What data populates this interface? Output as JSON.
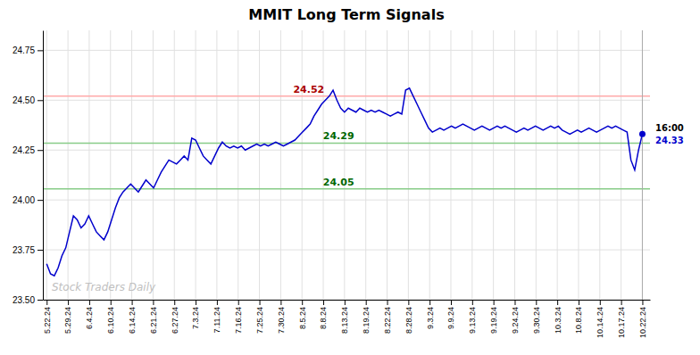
{
  "chart_data": {
    "type": "line",
    "title": "MMIT Long Term Signals",
    "color": "#0000cc",
    "grid": true,
    "values": [
      23.68,
      23.63,
      23.62,
      23.66,
      23.72,
      23.76,
      23.84,
      23.92,
      23.9,
      23.86,
      23.88,
      23.92,
      23.88,
      23.84,
      23.82,
      23.8,
      23.84,
      23.9,
      23.96,
      24.01,
      24.04,
      24.06,
      24.08,
      24.06,
      24.04,
      24.07,
      24.1,
      24.08,
      24.06,
      24.1,
      24.14,
      24.17,
      24.2,
      24.19,
      24.18,
      24.2,
      24.22,
      24.2,
      24.31,
      24.3,
      24.26,
      24.22,
      24.2,
      24.18,
      24.22,
      24.26,
      24.29,
      24.27,
      24.26,
      24.27,
      24.26,
      24.27,
      24.25,
      24.26,
      24.27,
      24.28,
      24.27,
      24.28,
      24.27,
      24.28,
      24.29,
      24.28,
      24.27,
      24.28,
      24.29,
      24.3,
      24.32,
      24.34,
      24.36,
      24.38,
      24.42,
      24.45,
      24.48,
      24.5,
      24.52,
      24.55,
      24.5,
      24.46,
      24.44,
      24.46,
      24.45,
      24.44,
      24.46,
      24.45,
      24.44,
      24.45,
      24.44,
      24.45,
      24.44,
      24.43,
      24.42,
      24.43,
      24.44,
      24.43,
      24.55,
      24.56,
      24.52,
      24.48,
      24.44,
      24.4,
      24.36,
      24.34,
      24.35,
      24.36,
      24.35,
      24.36,
      24.37,
      24.36,
      24.37,
      24.38,
      24.37,
      24.36,
      24.35,
      24.36,
      24.37,
      24.36,
      24.35,
      24.36,
      24.37,
      24.36,
      24.37,
      24.36,
      24.35,
      24.34,
      24.35,
      24.36,
      24.35,
      24.36,
      24.37,
      24.36,
      24.35,
      24.36,
      24.37,
      24.36,
      24.37,
      24.35,
      24.34,
      24.33,
      24.34,
      24.35,
      24.34,
      24.35,
      24.36,
      24.35,
      24.34,
      24.35,
      24.36,
      24.37,
      24.36,
      24.37,
      24.36,
      24.35,
      24.34,
      24.2,
      24.15,
      24.25,
      24.33
    ],
    "xlim": [
      -1,
      158
    ],
    "xticks": [
      {
        "value": 0,
        "label": "5.22.24"
      },
      {
        "value": 5.571428571428571,
        "label": "5.29.24"
      },
      {
        "value": 11.142857142857142,
        "label": "6.4.24"
      },
      {
        "value": 16.714285714285715,
        "label": "6.10.24"
      },
      {
        "value": 22.285714285714285,
        "label": "6.14.24"
      },
      {
        "value": 27.857142857142858,
        "label": "6.21.24"
      },
      {
        "value": 33.42857142857143,
        "label": "6.27.24"
      },
      {
        "value": 39,
        "label": "7.3.24"
      },
      {
        "value": 44.57142857142857,
        "label": "7.11.24"
      },
      {
        "value": 50.142857142857146,
        "label": "7.16.24"
      },
      {
        "value": 55.714285714285715,
        "label": "7.25.24"
      },
      {
        "value": 61.285714285714285,
        "label": "7.30.24"
      },
      {
        "value": 66.85714285714286,
        "label": "8.5.24"
      },
      {
        "value": 72.42857142857143,
        "label": "8.8.24"
      },
      {
        "value": 78,
        "label": "8.13.24"
      },
      {
        "value": 83.57142857142857,
        "label": "8.19.24"
      },
      {
        "value": 89.14285714285714,
        "label": "8.22.24"
      },
      {
        "value": 94.71428571428571,
        "label": "8.28.24"
      },
      {
        "value": 100.28571428571429,
        "label": "9.3.24"
      },
      {
        "value": 105.85714285714286,
        "label": "9.9.24"
      },
      {
        "value": 111.42857142857143,
        "label": "9.13.24"
      },
      {
        "value": 117,
        "label": "9.19.24"
      },
      {
        "value": 122.57142857142857,
        "label": "9.24.24"
      },
      {
        "value": 128.14285714285714,
        "label": "9.30.24"
      },
      {
        "value": 133.71428571428572,
        "label": "10.3.24"
      },
      {
        "value": 139.28571428571428,
        "label": "10.8.24"
      },
      {
        "value": 144.85714285714286,
        "label": "10.14.24"
      },
      {
        "value": 150.42857142857142,
        "label": "10.17.24"
      },
      {
        "value": 156,
        "label": "10.22.24"
      }
    ],
    "ylim": [
      23.5,
      24.85
    ],
    "yticks": [
      {
        "value": 23.5,
        "label": "23.50"
      },
      23.75,
      {
        "value": 24.0,
        "label": "24.00"
      },
      24.25,
      {
        "value": 24.5,
        "label": "24.50"
      },
      24.75
    ],
    "reference_lines": [
      {
        "value": 24.52,
        "color": "#ffaaaa",
        "label": "24.52",
        "label_color": "#aa0000",
        "label_x": 68.64
      },
      {
        "value": 24.285,
        "color": "#88cc88",
        "label": "24.29",
        "label_color": "#006600",
        "label_x": 76.44
      },
      {
        "value": 24.055,
        "color": "#88cc88",
        "label": "24.05",
        "label_color": "#006600",
        "label_x": 76.44
      }
    ],
    "last_point_color": "#0000cc",
    "last_time_label": "16:00",
    "last_value_label": "24.33",
    "watermark": "Stock Traders Daily",
    "watermark_color": "#c0c0c0"
  }
}
